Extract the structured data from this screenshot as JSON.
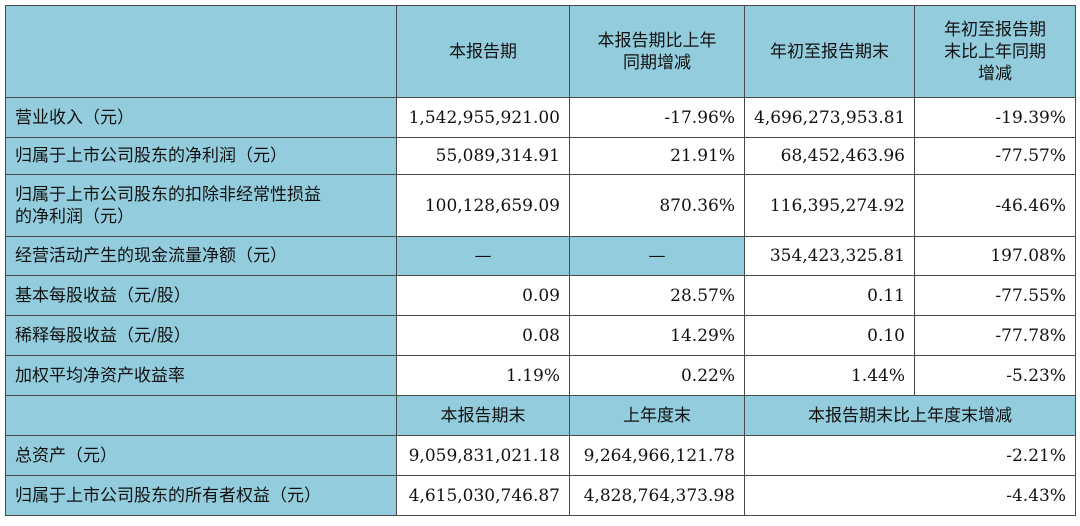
{
  "header": {
    "col1": "本报告期",
    "col2_line1": "本报告期比上年",
    "col2_line2": "同期增减",
    "col3": "年初至报告期末",
    "col4_line1": "年初至报告期",
    "col4_line2": "末比上年同期",
    "col4_line3": "增减"
  },
  "rows": [
    {
      "label": "营业收入（元）",
      "v1": "1,542,955,921.00",
      "v2": "-17.96%",
      "v3": "4,696,273,953.81",
      "v4": "-19.39%"
    },
    {
      "label": "归属于上市公司股东的净利润（元）",
      "v1": "55,089,314.91",
      "v2": "21.91%",
      "v3": "68,452,463.96",
      "v4": "-77.57%"
    },
    {
      "label_line1": "归属于上市公司股东的扣除非经常性损益",
      "label_line2": "的净利润（元）",
      "v1": "100,128,659.09",
      "v2": "870.36%",
      "v3": "116,395,274.92",
      "v4": "-46.46%"
    },
    {
      "label": "经营活动产生的现金流量净额（元）",
      "v1": "—",
      "v2": "—",
      "v3": "354,423,325.81",
      "v4": "197.08%"
    },
    {
      "label": "基本每股收益（元/股）",
      "v1": "0.09",
      "v2": "28.57%",
      "v3": "0.11",
      "v4": "-77.55%"
    },
    {
      "label": "稀释每股收益（元/股）",
      "v1": "0.08",
      "v2": "14.29%",
      "v3": "0.10",
      "v4": "-77.78%"
    },
    {
      "label": "加权平均净资产收益率",
      "v1": "1.19%",
      "v2": "0.22%",
      "v3": "1.44%",
      "v4": "-5.23%"
    }
  ],
  "header2": {
    "col1": "本报告期末",
    "col2": "上年度末",
    "col3": "本报告期末比上年度末增减"
  },
  "rows2": [
    {
      "label": "总资产（元）",
      "v1": "9,059,831,021.18",
      "v2": "9,264,966,121.78",
      "v3": "-2.21%"
    },
    {
      "label": "归属于上市公司股东的所有者权益（元）",
      "v1": "4,615,030,746.87",
      "v2": "4,828,764,373.98",
      "v3": "-4.43%"
    }
  ],
  "colors": {
    "header_bg": "#93cddd",
    "border": "#4a4a4a",
    "cell_bg": "#ffffff"
  }
}
